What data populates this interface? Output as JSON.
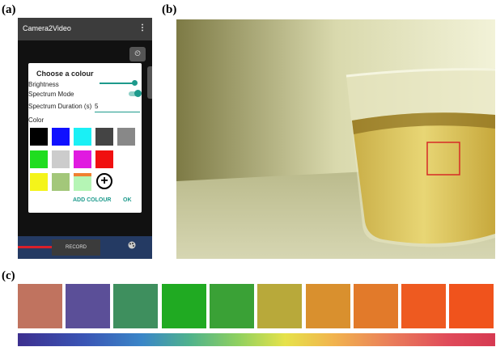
{
  "labels": {
    "a": "(a)",
    "b": "(b)",
    "c": "(c)"
  },
  "app": {
    "title": "Camera2Video",
    "menu_icon": "⋮",
    "timer_icon": "⏲",
    "record_label": "RECORD",
    "palette_icon": "palette-icon"
  },
  "dialog": {
    "title": "Choose a colour",
    "brightness_label": "Brightness",
    "brightness_level": 0.95,
    "spectrum_mode_label": "Spectrum Mode",
    "spectrum_mode_on": true,
    "duration_label": "Spectrum Duration (s)",
    "duration_value": "5",
    "color_label": "Color",
    "swatches": [
      "#000000",
      "#1010ff",
      "#1af0f5",
      "#444444",
      "#888888",
      "#1fdd1f",
      "#cccccc",
      "#e01ae0",
      "#f01010",
      "#f4f41a",
      "#a3c77a",
      "#b5f5b5"
    ],
    "add_colour_label": "ADD COLOUR",
    "ok_label": "OK"
  },
  "photo": {
    "selection_color": "#d62a26"
  },
  "color_strip": [
    "#c0735f",
    "#5b4f98",
    "#3e8f5e",
    "#20aa22",
    "#3aa136",
    "#b8a93a",
    "#d9902e",
    "#e27a2a",
    "#ee5a20",
    "#f0531c"
  ]
}
